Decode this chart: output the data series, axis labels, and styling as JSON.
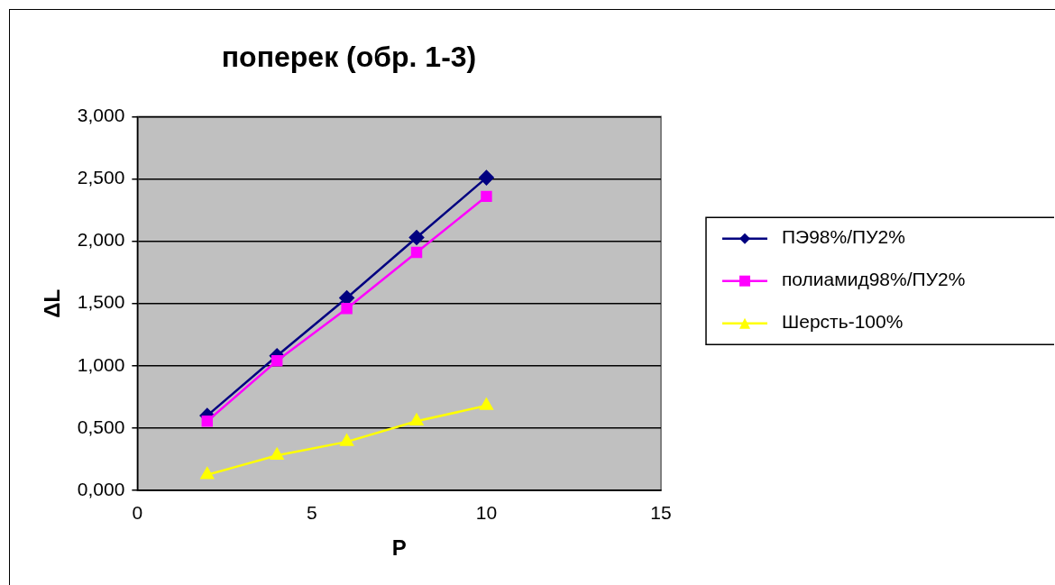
{
  "chart_data": {
    "type": "line",
    "title": "поперек (обр. 1-3)",
    "xlabel": "P",
    "ylabel": "ΔL",
    "x": [
      2,
      4,
      6,
      8,
      10
    ],
    "series": [
      {
        "name": "ПЭ98%/ПУ2%",
        "color": "#000080",
        "marker": "diamond",
        "values": [
          0.6,
          1.08,
          1.545,
          2.03,
          2.51
        ]
      },
      {
        "name": "полиамид98%/ПУ2%",
        "color": "#ff00ff",
        "marker": "square",
        "values": [
          0.555,
          1.04,
          1.46,
          1.91,
          2.36
        ]
      },
      {
        "name": "Шерсть-100%",
        "color": "#ffff00",
        "marker": "triangle",
        "values": [
          0.125,
          0.28,
          0.39,
          0.555,
          0.68
        ]
      }
    ],
    "xlim": [
      0,
      15
    ],
    "xticks": [
      0,
      5,
      10,
      15
    ],
    "ylim": [
      0,
      3
    ],
    "yticks": [
      {
        "value": 0,
        "label": "0,000"
      },
      {
        "value": 0.5,
        "label": "0,500"
      },
      {
        "value": 1,
        "label": "1,000"
      },
      {
        "value": 1.5,
        "label": "1,500"
      },
      {
        "value": 2,
        "label": "2,000"
      },
      {
        "value": 2.5,
        "label": "2,500"
      },
      {
        "value": 3,
        "label": "3,000"
      }
    ],
    "grid": "y",
    "legend": "right",
    "line_style": "solid"
  }
}
